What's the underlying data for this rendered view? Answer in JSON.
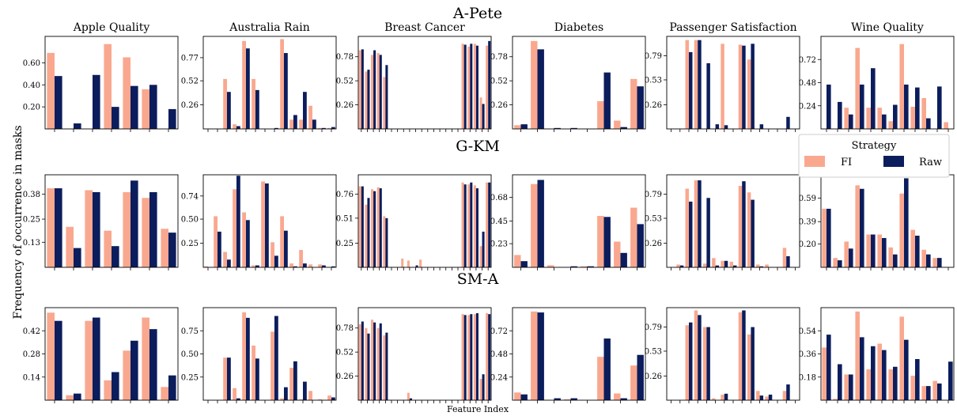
{
  "figure": {
    "ylabel": "Frequency of occurrence in masks",
    "xlabel": "Feature Index",
    "rows": [
      "A-Pete",
      "G-KM",
      "SM-A"
    ],
    "datasets": [
      "Apple Quality",
      "Australia Rain",
      "Breast Cancer",
      "Diabetes",
      "Passenger Satisfaction",
      "Wine Quality"
    ],
    "legend": {
      "title": "Strategy",
      "items": [
        "FI",
        "Raw"
      ],
      "placement": "right, between row 1 and row 2"
    },
    "colors": {
      "FI": "#f9a88f",
      "Raw": "#0b1d5c"
    }
  },
  "chart_data": [
    {
      "type": "bar",
      "row": "A-Pete",
      "title": "Apple Quality",
      "ylim": [
        0,
        0.84
      ],
      "yticks": [
        "0.20",
        "0.40",
        "0.60"
      ],
      "series": [
        {
          "name": "FI",
          "values": [
            0.69,
            0,
            0,
            0.77,
            0.65,
            0.36,
            0
          ]
        },
        {
          "name": "Raw",
          "values": [
            0.48,
            0.05,
            0.49,
            0.2,
            0.39,
            0.4,
            0.18
          ]
        }
      ]
    },
    {
      "type": "bar",
      "row": "A-Pete",
      "title": "Australia Rain",
      "ylim": [
        0,
        1.0
      ],
      "yticks": [
        "0.26",
        "0.52",
        "0.77"
      ],
      "series": [
        {
          "name": "FI",
          "values": [
            0,
            0,
            0.54,
            0.05,
            0.95,
            0.54,
            0,
            0,
            0.97,
            0.1,
            0.1,
            0.25,
            0.01,
            0.01
          ]
        },
        {
          "name": "Raw",
          "values": [
            0,
            0,
            0.4,
            0.03,
            0.87,
            0.42,
            0,
            0.01,
            0.82,
            0.15,
            0.4,
            0.1,
            0.01,
            0.02
          ]
        }
      ]
    },
    {
      "type": "bar",
      "row": "A-Pete",
      "title": "Breast Cancer",
      "ylim": [
        0,
        1.0
      ],
      "yticks": [
        "0.26",
        "0.52",
        "0.78"
      ],
      "series": [
        {
          "name": "FI",
          "values": [
            0.85,
            0.62,
            0.8,
            0.82,
            0.56,
            0,
            0,
            0,
            0,
            0,
            0,
            0,
            0,
            0,
            0,
            0,
            0,
            0.92,
            0.89,
            0.92,
            0.34,
            0.9
          ]
        },
        {
          "name": "Raw",
          "values": [
            0.86,
            0.64,
            0.85,
            0.8,
            0.69,
            0,
            0,
            0,
            0,
            0,
            0,
            0,
            0,
            0,
            0,
            0,
            0,
            0.91,
            0.92,
            0.9,
            0.27,
            0.95
          ]
        }
      ]
    },
    {
      "type": "bar",
      "row": "A-Pete",
      "title": "Diabetes",
      "ylim": [
        0,
        1.0
      ],
      "yticks": [
        "0.26",
        "0.52",
        "0.78"
      ],
      "series": [
        {
          "name": "FI",
          "values": [
            0.04,
            0.95,
            0,
            0,
            0,
            0.3,
            0.09,
            0.54
          ]
        },
        {
          "name": "Raw",
          "values": [
            0.05,
            0.86,
            0.01,
            0.01,
            0,
            0.61,
            0.02,
            0.46
          ]
        }
      ]
    },
    {
      "type": "bar",
      "row": "A-Pete",
      "title": "Passenger Satisfaction",
      "ylim": [
        0,
        1.0
      ],
      "yticks": [
        "0.26",
        "0.53",
        "0.79"
      ],
      "series": [
        {
          "name": "FI",
          "values": [
            0,
            0,
            0.96,
            0.96,
            0,
            0,
            0.92,
            0,
            0.91,
            0.75,
            0,
            0,
            0,
            0,
            0
          ]
        },
        {
          "name": "Raw",
          "values": [
            0,
            0,
            0.83,
            0.96,
            0.71,
            0.05,
            0.04,
            0,
            0.9,
            0.92,
            0.05,
            0,
            0,
            0.13,
            0
          ]
        }
      ]
    },
    {
      "type": "bar",
      "row": "A-Pete",
      "title": "Wine Quality",
      "ylim": [
        0,
        0.96
      ],
      "yticks": [
        "0.24",
        "0.48",
        "0.72"
      ],
      "series": [
        {
          "name": "FI",
          "values": [
            0,
            0,
            0.22,
            0.84,
            0.22,
            0.22,
            0.08,
            0.88,
            0.23,
            0.32,
            0,
            0.07
          ]
        },
        {
          "name": "Raw",
          "values": [
            0.46,
            0.28,
            0.15,
            0.46,
            0.63,
            0.15,
            0.25,
            0.46,
            0.43,
            0.11,
            0.44,
            0
          ]
        }
      ]
    },
    {
      "type": "bar",
      "row": "G-KM",
      "title": "Apple Quality",
      "ylim": [
        0,
        0.48
      ],
      "yticks": [
        "0.13",
        "0.25",
        "0.38"
      ],
      "series": [
        {
          "name": "FI",
          "values": [
            0.41,
            0.21,
            0.4,
            0.19,
            0.39,
            0.36,
            0.2
          ]
        },
        {
          "name": "Raw",
          "values": [
            0.41,
            0.1,
            0.39,
            0.11,
            0.45,
            0.39,
            0.18
          ]
        }
      ]
    },
    {
      "type": "bar",
      "row": "G-KM",
      "title": "Australia Rain",
      "ylim": [
        0,
        0.96
      ],
      "yticks": [
        "0.25",
        "0.50",
        "0.74"
      ],
      "series": [
        {
          "name": "FI",
          "values": [
            0.01,
            0.53,
            0.16,
            0.81,
            0.57,
            0.02,
            0.89,
            0.26,
            0.53,
            0.04,
            0.18,
            0.03,
            0.03,
            0
          ]
        },
        {
          "name": "Raw",
          "values": [
            0,
            0.37,
            0.08,
            0.95,
            0.49,
            0.02,
            0.87,
            0.12,
            0.38,
            0.01,
            0.04,
            0,
            0.02,
            0.01
          ]
        }
      ]
    },
    {
      "type": "bar",
      "row": "G-KM",
      "title": "Breast Cancer",
      "ylim": [
        0,
        0.96
      ],
      "yticks": [
        "0.25",
        "0.51",
        "0.76"
      ],
      "series": [
        {
          "name": "FI",
          "values": [
            0.84,
            0.65,
            0.81,
            0.83,
            0.53,
            0,
            0,
            0.09,
            0.07,
            0,
            0.08,
            0,
            0,
            0,
            0,
            0,
            0,
            0.88,
            0.86,
            0.85,
            0.22,
            0.88
          ]
        },
        {
          "name": "Raw",
          "values": [
            0.84,
            0.72,
            0.79,
            0.82,
            0.51,
            0,
            0,
            0,
            0,
            0.02,
            0,
            0,
            0,
            0,
            0,
            0,
            0,
            0.86,
            0.88,
            0.82,
            0.37,
            0.88
          ]
        }
      ]
    },
    {
      "type": "bar",
      "row": "G-KM",
      "title": "Diabetes",
      "ylim": [
        0,
        0.9
      ],
      "yticks": [
        "0.23",
        "0.45",
        "0.68"
      ],
      "series": [
        {
          "name": "FI",
          "values": [
            0.12,
            0.81,
            0.02,
            0,
            0.01,
            0.5,
            0.25,
            0.58
          ]
        },
        {
          "name": "Raw",
          "values": [
            0.06,
            0.85,
            0,
            0.01,
            0.01,
            0.49,
            0.14,
            0.42
          ]
        }
      ]
    },
    {
      "type": "bar",
      "row": "G-KM",
      "title": "Passenger Satisfaction",
      "ylim": [
        0,
        1.0
      ],
      "yticks": [
        "0.26",
        "0.53",
        "0.79"
      ],
      "series": [
        {
          "name": "FI",
          "values": [
            0,
            0.03,
            0.85,
            0.94,
            0.04,
            0.1,
            0.07,
            0.06,
            0.88,
            0.81,
            0.03,
            0.03,
            0,
            0.21,
            0
          ]
        },
        {
          "name": "Raw",
          "values": [
            0,
            0.02,
            0.71,
            0.94,
            0.75,
            0.02,
            0.07,
            0.02,
            0.93,
            0.73,
            0.01,
            0,
            0,
            0.12,
            0
          ]
        }
      ]
    },
    {
      "type": "bar",
      "row": "G-KM",
      "title": "Wine Quality",
      "ylim": [
        0,
        0.79
      ],
      "yticks": [
        "0.20",
        "0.39",
        "0.59"
      ],
      "series": [
        {
          "name": "FI",
          "values": [
            0.5,
            0.08,
            0.22,
            0.7,
            0.28,
            0.28,
            0.17,
            0.63,
            0.32,
            0.15,
            0.08,
            0
          ]
        },
        {
          "name": "Raw",
          "values": [
            0.5,
            0.06,
            0.16,
            0.67,
            0.28,
            0.25,
            0.11,
            0.76,
            0.27,
            0.11,
            0.08,
            0
          ]
        }
      ]
    },
    {
      "type": "bar",
      "row": "SM-A",
      "title": "Apple Quality",
      "ylim": [
        0,
        0.56
      ],
      "yticks": [
        "0.14",
        "0.28",
        "0.42"
      ],
      "series": [
        {
          "name": "FI",
          "values": [
            0.53,
            0.03,
            0.48,
            0.12,
            0.3,
            0.5,
            0.08
          ]
        },
        {
          "name": "Raw",
          "values": [
            0.48,
            0.04,
            0.5,
            0.17,
            0.36,
            0.43,
            0.15
          ]
        }
      ]
    },
    {
      "type": "bar",
      "row": "SM-A",
      "title": "Australia Rain",
      "ylim": [
        0,
        1.0
      ],
      "yticks": [
        "0.25",
        "0.50",
        "0.75"
      ],
      "series": [
        {
          "name": "FI",
          "values": [
            0,
            0,
            0.46,
            0.13,
            0.95,
            0.59,
            0,
            0.74,
            0.02,
            0.35,
            0.01,
            0.1,
            0.01,
            0.05
          ]
        },
        {
          "name": "Raw",
          "values": [
            0,
            0,
            0.46,
            0.02,
            0.89,
            0.45,
            0,
            0.91,
            0.14,
            0.42,
            0.2,
            0,
            0,
            0.03
          ]
        }
      ]
    },
    {
      "type": "bar",
      "row": "SM-A",
      "title": "Breast Cancer",
      "ylim": [
        0,
        1.0
      ],
      "yticks": [
        "0.26",
        "0.52",
        "0.78"
      ],
      "series": [
        {
          "name": "FI",
          "values": [
            0.82,
            0.78,
            0.87,
            0.78,
            0.7,
            0,
            0,
            0,
            0.08,
            0,
            0,
            0,
            0,
            0,
            0,
            0,
            0,
            0.93,
            0.92,
            0.93,
            0.23,
            0.94
          ]
        },
        {
          "name": "Raw",
          "values": [
            0.85,
            0.72,
            0.84,
            0.83,
            0.73,
            0,
            0,
            0,
            0.02,
            0,
            0,
            0,
            0,
            0,
            0,
            0,
            0,
            0.92,
            0.93,
            0.94,
            0.28,
            0.93
          ]
        }
      ]
    },
    {
      "type": "bar",
      "row": "SM-A",
      "title": "Diabetes",
      "ylim": [
        0,
        0.96
      ],
      "yticks": [
        "0.24",
        "0.48",
        "0.72"
      ],
      "series": [
        {
          "name": "FI",
          "values": [
            0.08,
            0.92,
            0,
            0.01,
            0,
            0.45,
            0.07,
            0.36
          ]
        },
        {
          "name": "Raw",
          "values": [
            0.06,
            0.91,
            0.02,
            0.02,
            0,
            0.64,
            0.02,
            0.47
          ]
        }
      ]
    },
    {
      "type": "bar",
      "row": "SM-A",
      "title": "Passenger Satisfaction",
      "ylim": [
        0,
        1.0
      ],
      "yticks": [
        "0.26",
        "0.53",
        "0.79"
      ],
      "series": [
        {
          "name": "FI",
          "values": [
            0,
            0,
            0.81,
            0.97,
            0.79,
            0.02,
            0.06,
            0,
            0.95,
            0.71,
            0.1,
            0.04,
            0,
            0.1,
            0
          ]
        },
        {
          "name": "Raw",
          "values": [
            0,
            0,
            0.84,
            0.92,
            0.79,
            0,
            0.07,
            0,
            0.97,
            0.79,
            0.05,
            0.06,
            0,
            0.17,
            0
          ]
        }
      ]
    },
    {
      "type": "bar",
      "row": "SM-A",
      "title": "Wine Quality",
      "ylim": [
        0,
        0.72
      ],
      "yticks": [
        "0.18",
        "0.36",
        "0.54"
      ],
      "series": [
        {
          "name": "FI",
          "values": [
            0.41,
            0.01,
            0.2,
            0.69,
            0.24,
            0.44,
            0.24,
            0.65,
            0.19,
            0.11,
            0.15,
            0
          ]
        },
        {
          "name": "Raw",
          "values": [
            0.51,
            0.28,
            0.2,
            0.49,
            0.42,
            0.39,
            0.26,
            0.47,
            0.32,
            0.11,
            0.13,
            0.3
          ]
        }
      ]
    }
  ]
}
